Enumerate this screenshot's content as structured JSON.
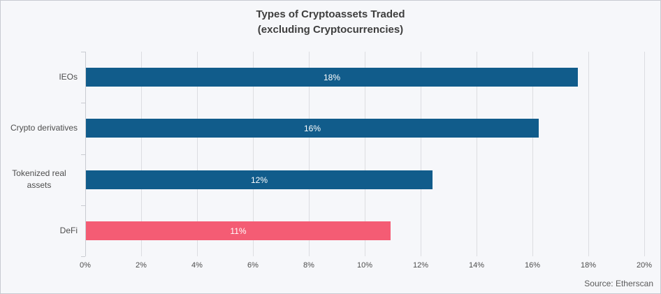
{
  "title": {
    "line1": "Types of Cryptoassets Traded",
    "line2": "(excluding Cryptocurrencies)"
  },
  "source": "Source: Etherscan",
  "colors": {
    "bar_default": "#115c8b",
    "bar_highlight": "#f45c74",
    "background": "#f6f7fa",
    "gridline": "#dcdde1",
    "axis_line": "#c9cbd1",
    "title_text": "#3e3e3e",
    "label_text": "#4d4d4d",
    "bar_value_text": "#ffffff"
  },
  "chart_data": {
    "type": "bar",
    "orientation": "horizontal",
    "title": "Types of Cryptoassets Traded (excluding Cryptocurrencies)",
    "categories": [
      "IEOs",
      "Crypto derivatives",
      "Tokenized real assets",
      "DeFi"
    ],
    "values": [
      18,
      16,
      12,
      11
    ],
    "value_labels": [
      "18%",
      "16%",
      "12%",
      "11%"
    ],
    "bar_extents_pct": [
      17.6,
      16.2,
      12.4,
      10.9
    ],
    "bar_colors": [
      "#115c8b",
      "#115c8b",
      "#115c8b",
      "#f45c74"
    ],
    "xlabel": "",
    "ylabel": "",
    "xlim": [
      0,
      20
    ],
    "x_tick_step": 2,
    "x_tick_labels": [
      "0%",
      "2%",
      "4%",
      "6%",
      "8%",
      "10%",
      "12%",
      "14%",
      "16%",
      "18%",
      "20%"
    ],
    "grid": "vertical-only",
    "legend": false,
    "data_label_position": "center-of-bar"
  }
}
